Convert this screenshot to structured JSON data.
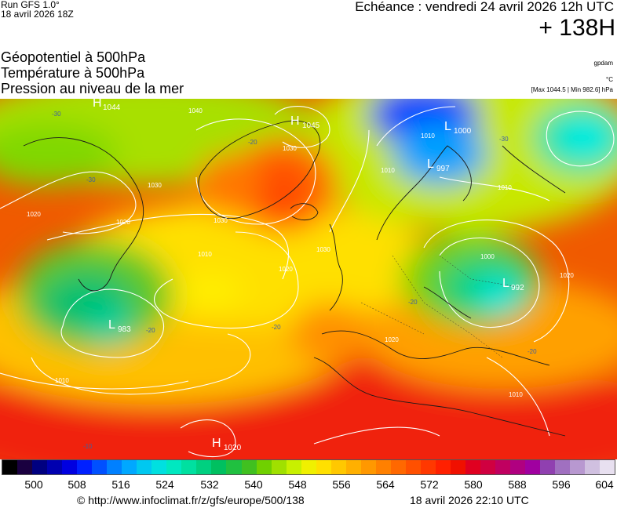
{
  "header": {
    "run_line1": "Run GFS 1.0°",
    "run_line2": "18 avril 2026 18Z",
    "echeance": "Echéance : vendredi 24 avril 2026 12h UTC",
    "horizon": "+ 138H",
    "field1": "Géopotentiel à 500hPa",
    "field2": "Température à 500hPa",
    "field3": "Pression au niveau de la mer",
    "unit_geo": "gpdam",
    "unit_temp": "°C",
    "maxmin": "[Max 1044.5 | Min 982.6] hPa"
  },
  "map": {
    "pressure_centers": [
      {
        "type": "H",
        "value": "1044"
      },
      {
        "type": "H",
        "value": "1045"
      },
      {
        "type": "L",
        "value": "1000"
      },
      {
        "type": "L",
        "value": "997"
      },
      {
        "type": "L",
        "value": "983"
      },
      {
        "type": "L",
        "value": "992"
      },
      {
        "type": "H",
        "value": "1020"
      }
    ],
    "isobar_labels": [
      "1040",
      "1030",
      "1030",
      "1030",
      "1020",
      "1020",
      "1010",
      "1010",
      "1010",
      "1010",
      "1000",
      "1020",
      "1010",
      "1020",
      "1030",
      "1020",
      "1010"
    ],
    "temp_labels": [
      "-30",
      "-30",
      "-20",
      "-20",
      "-20",
      "-20",
      "-10",
      "-20",
      "-30"
    ]
  },
  "scale": {
    "ticks": [
      "500",
      "508",
      "516",
      "524",
      "532",
      "540",
      "548",
      "556",
      "564",
      "572",
      "580",
      "588",
      "596",
      "604"
    ],
    "colors": [
      "#000000",
      "#1a0040",
      "#000080",
      "#0000b0",
      "#0000e0",
      "#0020ff",
      "#0050ff",
      "#0080ff",
      "#00a8ff",
      "#00c8f0",
      "#00e0e0",
      "#00e8c0",
      "#00e0a0",
      "#00d080",
      "#00c060",
      "#20c040",
      "#40c020",
      "#70d000",
      "#a0e000",
      "#c8f000",
      "#f0f000",
      "#ffe000",
      "#ffc800",
      "#ffb000",
      "#ff9800",
      "#ff8000",
      "#ff6800",
      "#ff5000",
      "#ff3800",
      "#ff2000",
      "#f01000",
      "#e00020",
      "#d00040",
      "#c00060",
      "#b00080",
      "#a000a0",
      "#9040b0",
      "#a070c0",
      "#b898d0",
      "#d0c0e0",
      "#e8e0f0"
    ]
  },
  "footer": {
    "url": "© http://www.infoclimat.fr/z/gfs/europe/500/138",
    "date": "18 avril 2026 22:10 UTC"
  }
}
